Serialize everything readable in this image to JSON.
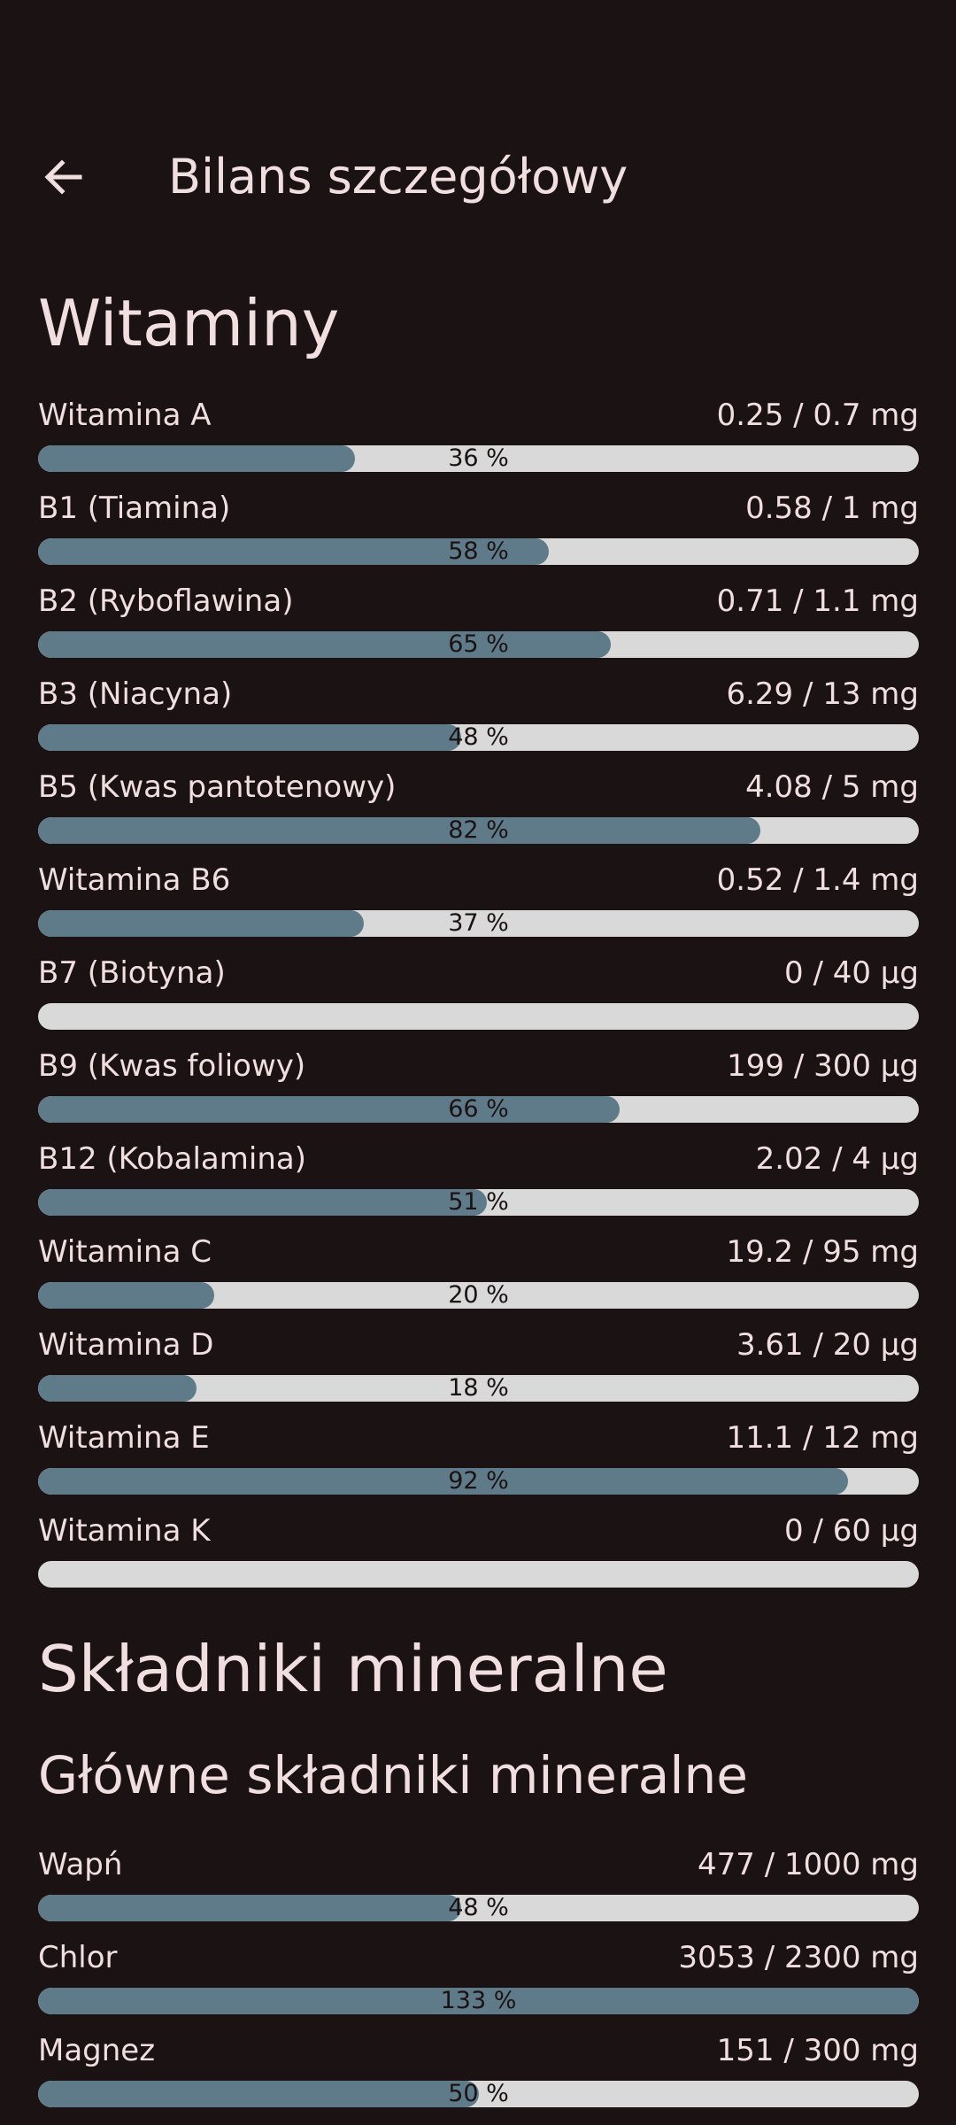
{
  "header": {
    "title": "Bilans szczegółowy"
  },
  "sections": {
    "vitamins": "Witaminy",
    "minerals": "Składniki mineralne",
    "main_minerals": "Główne składniki mineralne"
  },
  "vitamins": [
    {
      "name": "Witamina A",
      "amount": "0.25 / 0.7 mg",
      "percent": "36 %",
      "fraction": 0.36
    },
    {
      "name": "B1 (Tiamina)",
      "amount": "0.58 / 1 mg",
      "percent": "58 %",
      "fraction": 0.58
    },
    {
      "name": "B2 (Ryboflawina)",
      "amount": "0.71 / 1.1 mg",
      "percent": "65 %",
      "fraction": 0.65
    },
    {
      "name": "B3 (Niacyna)",
      "amount": "6.29 / 13 mg",
      "percent": "48 %",
      "fraction": 0.48
    },
    {
      "name": "B5 (Kwas pantotenowy)",
      "amount": "4.08 / 5 mg",
      "percent": "82 %",
      "fraction": 0.82
    },
    {
      "name": "Witamina B6",
      "amount": "0.52 / 1.4 mg",
      "percent": "37 %",
      "fraction": 0.37
    },
    {
      "name": "B7 (Biotyna)",
      "amount": "0 / 40 µg",
      "percent": "",
      "fraction": 0
    },
    {
      "name": "B9 (Kwas foliowy)",
      "amount": "199 / 300 µg",
      "percent": "66 %",
      "fraction": 0.66
    },
    {
      "name": "B12 (Kobalamina)",
      "amount": "2.02 / 4 µg",
      "percent": "51 %",
      "fraction": 0.51
    },
    {
      "name": "Witamina C",
      "amount": "19.2 / 95 mg",
      "percent": "20 %",
      "fraction": 0.2
    },
    {
      "name": "Witamina D",
      "amount": "3.61 / 20 µg",
      "percent": "18 %",
      "fraction": 0.18
    },
    {
      "name": "Witamina E",
      "amount": "11.1 / 12 mg",
      "percent": "92 %",
      "fraction": 0.92
    },
    {
      "name": "Witamina K",
      "amount": "0 / 60 µg",
      "percent": "",
      "fraction": 0
    }
  ],
  "main_minerals": [
    {
      "name": "Wapń",
      "amount": "477 / 1000 mg",
      "percent": "48 %",
      "fraction": 0.48
    },
    {
      "name": "Chlor",
      "amount": "3053 / 2300 mg",
      "percent": "133 %",
      "fraction": 1.0
    },
    {
      "name": "Magnez",
      "amount": "151 / 300 mg",
      "percent": "50 %",
      "fraction": 0.5
    }
  ]
}
